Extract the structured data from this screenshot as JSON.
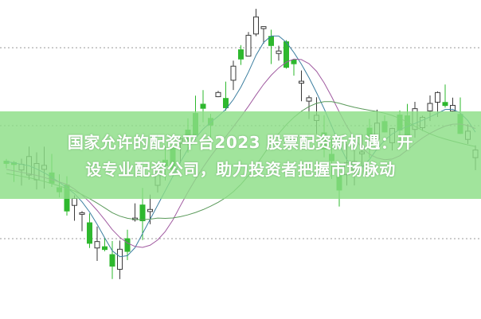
{
  "headline": {
    "line1": "国家允许的配资平台2023 股票配资新机遇：开",
    "line2": "设专业配资公司，助力投资者把握市场脉动"
  },
  "colors": {
    "banner": "#8cde86",
    "candle_down": "#2eb82e",
    "candle_up_outline": "#3a3a3a",
    "ma_short": "#3c7fa0",
    "ma_mid": "#a05aa0",
    "ma_long": "#5a9a5a"
  },
  "chart_style": "candlestick chart with moving averages, no axes shown"
}
